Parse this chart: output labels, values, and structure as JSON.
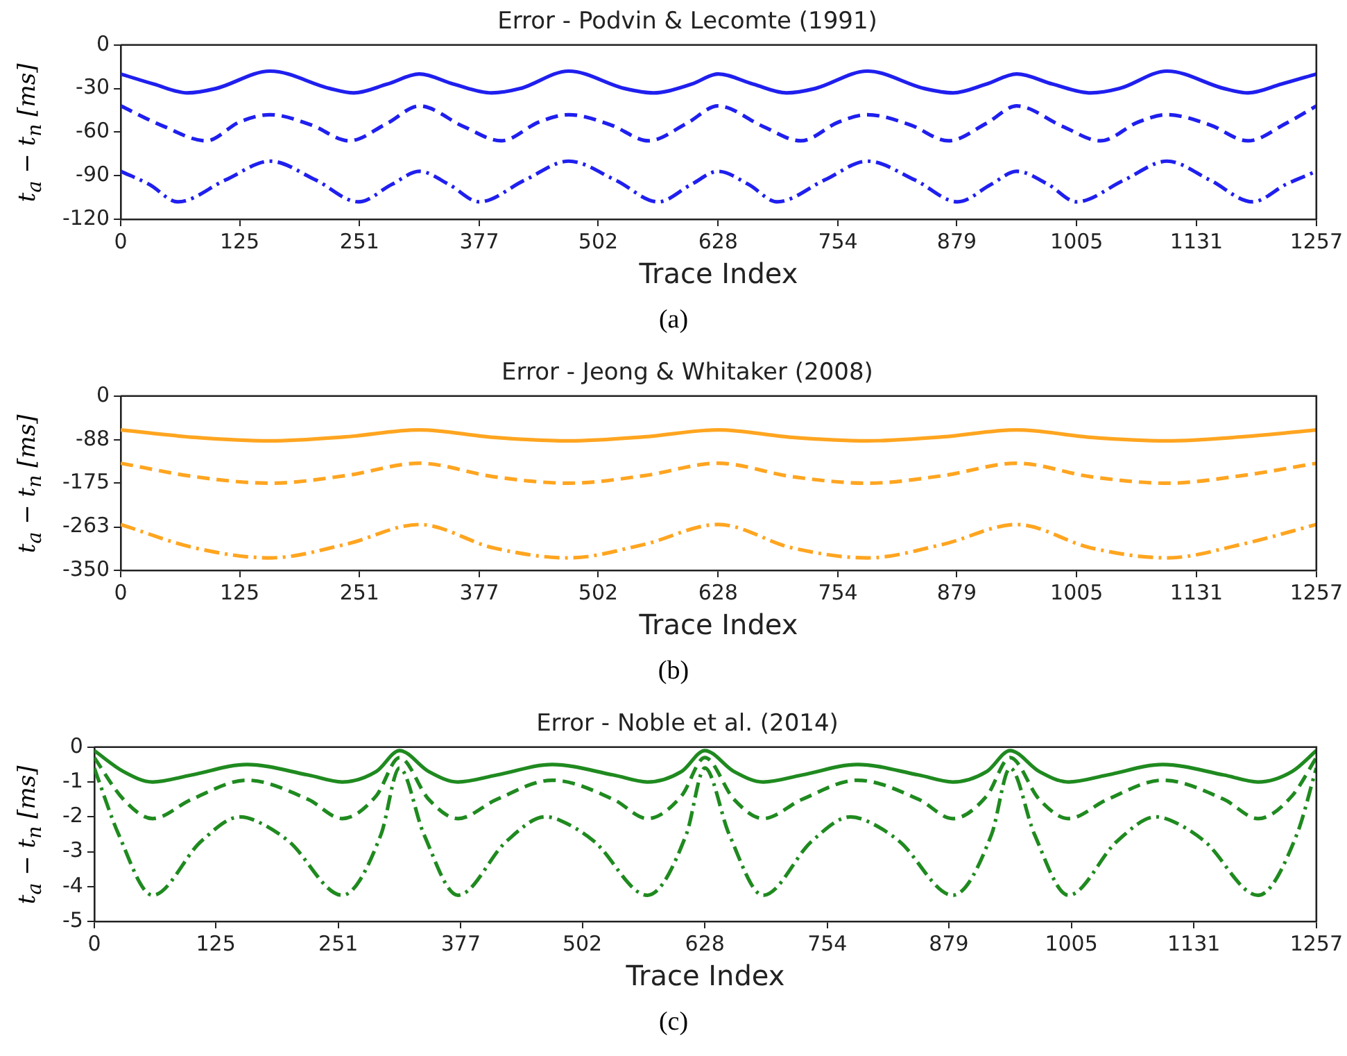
{
  "chart_data": [
    {
      "type": "line",
      "title": "Error - Podvin & Lecomte (1991)",
      "xlabel": "Trace Index",
      "ylabel": "t$_{a}$ − t$_{n}$ [ms]",
      "annotations": [
        "(a)"
      ],
      "xlim": [
        0,
        1257
      ],
      "xticks": [
        0,
        125,
        251,
        377,
        502,
        628,
        754,
        879,
        1005,
        1131,
        1257
      ],
      "ylim": [
        -120,
        0
      ],
      "yticks": [
        0,
        -30,
        -60,
        -90,
        -120
      ],
      "grid": false,
      "legend": false,
      "marker": "none",
      "series": [
        {
          "color": "#1f1fef",
          "line_style": "solid",
          "x": [
            0,
            35,
            70,
            100,
            157,
            220,
            245,
            280,
            314,
            350,
            390,
            420,
            471,
            530,
            560,
            600,
            628,
            665,
            700,
            730,
            785,
            845,
            875,
            910,
            942,
            980,
            1020,
            1050,
            1100,
            1160,
            1185,
            1220,
            1257
          ],
          "values": [
            -20,
            -27,
            -33,
            -30,
            -18,
            -30,
            -33,
            -27,
            -20,
            -27,
            -33,
            -30,
            -18,
            -30,
            -33,
            -27,
            -20,
            -27,
            -33,
            -30,
            -18,
            -30,
            -33,
            -27,
            -20,
            -27,
            -33,
            -30,
            -18,
            -30,
            -33,
            -27,
            -20
          ]
        },
        {
          "color": "#1f1fef",
          "line_style": "dashed",
          "x": [
            0,
            45,
            90,
            125,
            157,
            200,
            240,
            280,
            314,
            360,
            400,
            440,
            471,
            515,
            555,
            595,
            628,
            675,
            715,
            755,
            785,
            830,
            870,
            910,
            942,
            990,
            1030,
            1070,
            1100,
            1145,
            1185,
            1225,
            1257
          ],
          "values": [
            -42,
            -56,
            -66,
            -53,
            -48,
            -55,
            -66,
            -54,
            -42,
            -56,
            -66,
            -53,
            -48,
            -55,
            -66,
            -54,
            -42,
            -56,
            -66,
            -53,
            -48,
            -55,
            -66,
            -54,
            -42,
            -56,
            -66,
            -53,
            -48,
            -55,
            -66,
            -54,
            -42
          ]
        },
        {
          "color": "#1f1fef",
          "line_style": "dashdot",
          "x": [
            0,
            30,
            60,
            110,
            157,
            205,
            250,
            285,
            314,
            345,
            377,
            425,
            471,
            520,
            565,
            600,
            628,
            660,
            690,
            740,
            785,
            835,
            880,
            915,
            942,
            975,
            1005,
            1055,
            1100,
            1145,
            1190,
            1225,
            1257
          ],
          "values": [
            -87,
            -96,
            -108,
            -93,
            -80,
            -93,
            -108,
            -96,
            -87,
            -96,
            -108,
            -93,
            -80,
            -93,
            -108,
            -96,
            -87,
            -96,
            -108,
            -93,
            -80,
            -93,
            -108,
            -96,
            -87,
            -96,
            -108,
            -93,
            -80,
            -93,
            -108,
            -96,
            -87
          ]
        }
      ]
    },
    {
      "type": "line",
      "title": "Error - Jeong & Whitaker (2008)",
      "xlabel": "Trace Index",
      "ylabel": "t$_{a}$ − t$_{n}$ [ms]",
      "annotations": [
        "(b)"
      ],
      "xlim": [
        0,
        1257
      ],
      "xticks": [
        0,
        125,
        251,
        377,
        502,
        628,
        754,
        879,
        1005,
        1131,
        1257
      ],
      "ylim": [
        -350,
        0
      ],
      "yticks": [
        0,
        -88,
        -175,
        -263,
        -350
      ],
      "grid": false,
      "legend": false,
      "marker": "none",
      "series": [
        {
          "color": "#ffa520",
          "line_style": "solid",
          "x": [
            0,
            78,
            157,
            236,
            314,
            392,
            471,
            550,
            628,
            706,
            785,
            864,
            942,
            1020,
            1100,
            1178,
            1257
          ],
          "values": [
            -68,
            -83,
            -90,
            -82,
            -68,
            -83,
            -90,
            -82,
            -68,
            -83,
            -90,
            -82,
            -68,
            -83,
            -90,
            -82,
            -68
          ]
        },
        {
          "color": "#ffa520",
          "line_style": "dashed",
          "x": [
            0,
            78,
            157,
            236,
            314,
            392,
            471,
            550,
            628,
            706,
            785,
            864,
            942,
            1020,
            1100,
            1178,
            1257
          ],
          "values": [
            -135,
            -162,
            -175,
            -160,
            -135,
            -162,
            -175,
            -160,
            -135,
            -162,
            -175,
            -160,
            -135,
            -162,
            -175,
            -160,
            -135
          ]
        },
        {
          "color": "#ffa520",
          "line_style": "dashdot",
          "x": [
            0,
            78,
            157,
            236,
            314,
            392,
            471,
            550,
            628,
            706,
            785,
            864,
            942,
            1020,
            1100,
            1178,
            1257
          ],
          "values": [
            -258,
            -305,
            -325,
            -298,
            -258,
            -305,
            -325,
            -298,
            -258,
            -305,
            -325,
            -298,
            -258,
            -305,
            -325,
            -298,
            -258
          ]
        }
      ]
    },
    {
      "type": "line",
      "title": "Error - Noble et al. (2014)",
      "xlabel": "Trace Index",
      "ylabel": "t$_{a}$ − t$_{n}$ [ms]",
      "annotations": [
        "(c)"
      ],
      "xlim": [
        0,
        1257
      ],
      "xticks": [
        0,
        125,
        251,
        377,
        502,
        628,
        754,
        879,
        1005,
        1131,
        1257
      ],
      "ylim": [
        -5,
        0
      ],
      "yticks": [
        0,
        -1,
        -2,
        -3,
        -4,
        -5
      ],
      "grid": false,
      "legend": false,
      "marker": "none",
      "series": [
        {
          "color": "#1f8a1f",
          "line_style": "solid",
          "x": [
            0,
            30,
            60,
            100,
            157,
            220,
            255,
            290,
            314,
            344,
            374,
            414,
            471,
            534,
            569,
            604,
            628,
            658,
            688,
            728,
            785,
            848,
            883,
            918,
            942,
            972,
            1002,
            1042,
            1099,
            1162,
            1197,
            1232,
            1257
          ],
          "values": [
            -0.1,
            -0.7,
            -1.0,
            -0.8,
            -0.5,
            -0.8,
            -1.0,
            -0.7,
            -0.1,
            -0.7,
            -1.0,
            -0.8,
            -0.5,
            -0.8,
            -1.0,
            -0.7,
            -0.1,
            -0.7,
            -1.0,
            -0.8,
            -0.5,
            -0.8,
            -1.0,
            -0.7,
            -0.1,
            -0.7,
            -1.0,
            -0.8,
            -0.5,
            -0.8,
            -1.0,
            -0.7,
            -0.1
          ]
        },
        {
          "color": "#1f8a1f",
          "line_style": "dashed",
          "x": [
            0,
            30,
            60,
            100,
            157,
            220,
            255,
            290,
            314,
            344,
            374,
            414,
            471,
            534,
            569,
            604,
            628,
            658,
            688,
            728,
            785,
            848,
            883,
            918,
            942,
            972,
            1002,
            1042,
            1099,
            1162,
            1197,
            1232,
            1257
          ],
          "values": [
            -0.3,
            -1.5,
            -2.05,
            -1.5,
            -0.95,
            -1.5,
            -2.05,
            -1.4,
            -0.3,
            -1.5,
            -2.05,
            -1.5,
            -0.95,
            -1.5,
            -2.05,
            -1.4,
            -0.3,
            -1.5,
            -2.05,
            -1.5,
            -0.95,
            -1.5,
            -2.05,
            -1.4,
            -0.3,
            -1.5,
            -2.05,
            -1.5,
            -0.95,
            -1.5,
            -2.05,
            -1.4,
            -0.3
          ]
        },
        {
          "color": "#1f8a1f",
          "line_style": "dashdot",
          "x": [
            0,
            25,
            60,
            110,
            150,
            165,
            200,
            255,
            295,
            314,
            339,
            374,
            424,
            464,
            479,
            514,
            569,
            609,
            628,
            653,
            688,
            738,
            778,
            793,
            828,
            883,
            923,
            942,
            967,
            1002,
            1052,
            1092,
            1107,
            1142,
            1197,
            1237,
            1257
          ],
          "values": [
            -0.6,
            -2.5,
            -4.25,
            -2.7,
            -2.0,
            -2.1,
            -2.7,
            -4.25,
            -2.5,
            -0.6,
            -2.5,
            -4.25,
            -2.7,
            -2.0,
            -2.1,
            -2.7,
            -4.25,
            -2.5,
            -0.6,
            -2.5,
            -4.25,
            -2.7,
            -2.0,
            -2.1,
            -2.7,
            -4.25,
            -2.5,
            -0.6,
            -2.5,
            -4.25,
            -2.7,
            -2.0,
            -2.1,
            -2.7,
            -4.25,
            -2.5,
            -0.6
          ]
        }
      ]
    }
  ]
}
